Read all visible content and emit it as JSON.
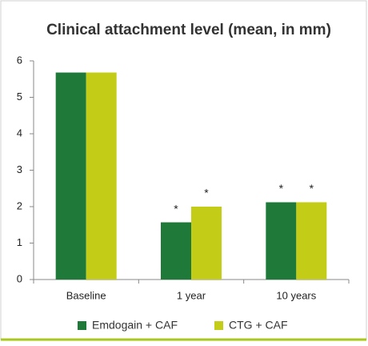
{
  "chart_data": {
    "type": "bar",
    "title": "Clinical attachment level (mean, in mm)",
    "categories": [
      "Baseline",
      "1 year",
      "10 years"
    ],
    "series": [
      {
        "name": "Emdogain + CAF",
        "color": "#1f7a3a",
        "values": [
          5.68,
          1.57,
          2.12
        ]
      },
      {
        "name": "CTG + CAF",
        "color": "#c3cc16",
        "values": [
          5.68,
          2.0,
          2.12
        ]
      }
    ],
    "annotations": [
      {
        "text": "*",
        "series": 0,
        "category": 1
      },
      {
        "text": "*",
        "series": 1,
        "category": 1
      },
      {
        "text": "*",
        "series": 0,
        "category": 2
      },
      {
        "text": "*",
        "series": 1,
        "category": 2
      }
    ],
    "ylim": [
      0,
      6
    ],
    "yticks": [
      0,
      1,
      2,
      3,
      4,
      5,
      6
    ],
    "grid": false
  }
}
